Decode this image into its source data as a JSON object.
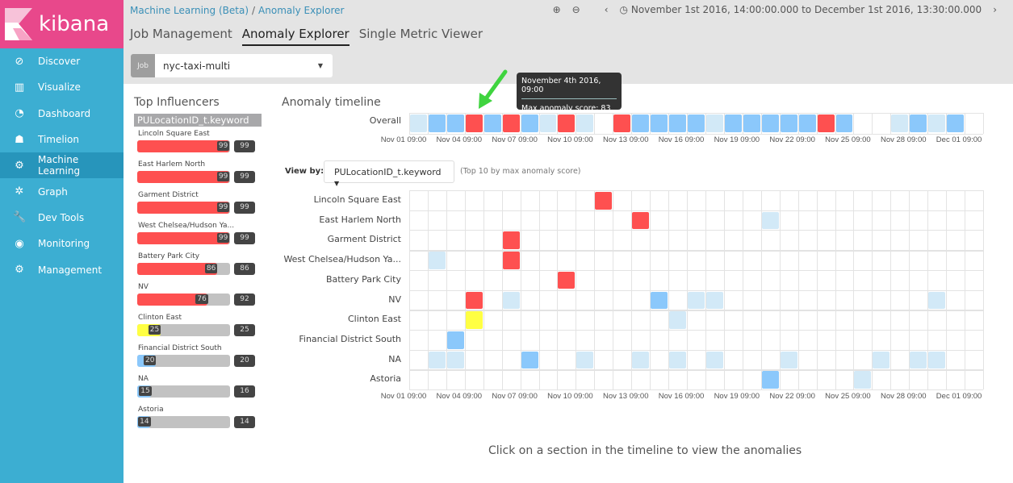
{
  "app": {
    "logo": "kibana"
  },
  "sidebar": {
    "items": [
      {
        "label": "Discover",
        "icon": "compass-icon",
        "glyph": "⊘"
      },
      {
        "label": "Visualize",
        "icon": "bar-chart-icon",
        "glyph": "▥"
      },
      {
        "label": "Dashboard",
        "icon": "dashboard-icon",
        "glyph": "◔"
      },
      {
        "label": "Timelion",
        "icon": "timelion-icon",
        "glyph": "☗"
      },
      {
        "label": "Machine Learning",
        "icon": "ml-icon",
        "glyph": "⚙",
        "active": true
      },
      {
        "label": "Graph",
        "icon": "graph-icon",
        "glyph": "✲"
      },
      {
        "label": "Dev Tools",
        "icon": "wrench-icon",
        "glyph": "🔧"
      },
      {
        "label": "Monitoring",
        "icon": "eye-icon",
        "glyph": "◉"
      },
      {
        "label": "Management",
        "icon": "gear-icon",
        "glyph": "⚙"
      }
    ]
  },
  "breadcrumb": {
    "parent": "Machine Learning (Beta)",
    "separator": "/",
    "current": "Anomaly Explorer"
  },
  "tabs": [
    "Job Management",
    "Anomaly Explorer",
    "Single Metric Viewer"
  ],
  "time_range": "November 1st 2016, 14:00:00.000 to December 1st 2016, 13:30:00.000",
  "job": {
    "label": "Job",
    "value": "nyc-taxi-multi"
  },
  "influencers": {
    "title": "Top Influencers",
    "field": "PULocationID_t.keyword",
    "items": [
      {
        "name": "Lincoln Square East",
        "max": 99,
        "total": 99
      },
      {
        "name": "East Harlem North",
        "max": 99,
        "total": 99
      },
      {
        "name": "Garment District",
        "max": 99,
        "total": 99
      },
      {
        "name": "West Chelsea/Hudson Ya...",
        "max": 99,
        "total": 99
      },
      {
        "name": "Battery Park City",
        "max": 86,
        "total": 86
      },
      {
        "name": "NV",
        "max": 76,
        "total": 92
      },
      {
        "name": "Clinton East",
        "max": 25,
        "total": 25
      },
      {
        "name": "Financial District South",
        "max": 20,
        "total": 20
      },
      {
        "name": "NA",
        "max": 15,
        "total": 16
      },
      {
        "name": "Astoria",
        "max": 14,
        "total": 14
      }
    ]
  },
  "timeline": {
    "title": "Anomaly timeline",
    "overall_label": "Overall",
    "overall": "lbbrbrblrlwrbbbblbbbbbrbwwlblb",
    "x_labels": [
      "Nov 01 09:00",
      "Nov 04 09:00",
      "Nov 07 09:00",
      "Nov 10 09:00",
      "Nov 13 09:00",
      "Nov 16 09:00",
      "Nov 19 09:00",
      "Nov 22 09:00",
      "Nov 25 09:00",
      "Nov 28 09:00",
      "Dec 01 09:00"
    ],
    "view_by_label": "View by:",
    "view_by_value": "PULocationID_t.keyword",
    "view_by_note": "(Top 10 by max anomaly score)",
    "rows": [
      {
        "label": "Lincoln Square East",
        "cells": {
          "10": "r"
        }
      },
      {
        "label": "East Harlem North",
        "cells": {
          "12": "r",
          "19": "l"
        }
      },
      {
        "label": "Garment District",
        "cells": {
          "5": "r"
        }
      },
      {
        "label": "West Chelsea/Hudson Ya...",
        "cells": {
          "1": "l",
          "5": "r"
        }
      },
      {
        "label": "Battery Park City",
        "cells": {
          "8": "r"
        }
      },
      {
        "label": "NV",
        "cells": {
          "3": "r",
          "5": "l",
          "13": "b",
          "15": "l",
          "16": "l",
          "28": "l"
        }
      },
      {
        "label": "Clinton East",
        "cells": {
          "3": "y",
          "14": "l"
        }
      },
      {
        "label": "Financial District South",
        "cells": {
          "2": "b"
        }
      },
      {
        "label": "NA",
        "cells": {
          "1": "l",
          "2": "l",
          "6": "b",
          "9": "l",
          "12": "l",
          "14": "l",
          "16": "l",
          "20": "l",
          "25": "l",
          "27": "l",
          "28": "l"
        }
      },
      {
        "label": "Astoria",
        "cells": {
          "19": "b",
          "24": "l"
        }
      }
    ]
  },
  "tooltip": {
    "date": "November 4th 2016, 09:00",
    "score": "Max anomaly score: 83"
  },
  "colors": {
    "r": "#fe5050",
    "l": "#d2e9f7",
    "b": "#8bc8fb",
    "y": "#ffff43",
    "w": "#ffffff"
  },
  "empty_message": "Click on a section in the timeline to view the anomalies"
}
